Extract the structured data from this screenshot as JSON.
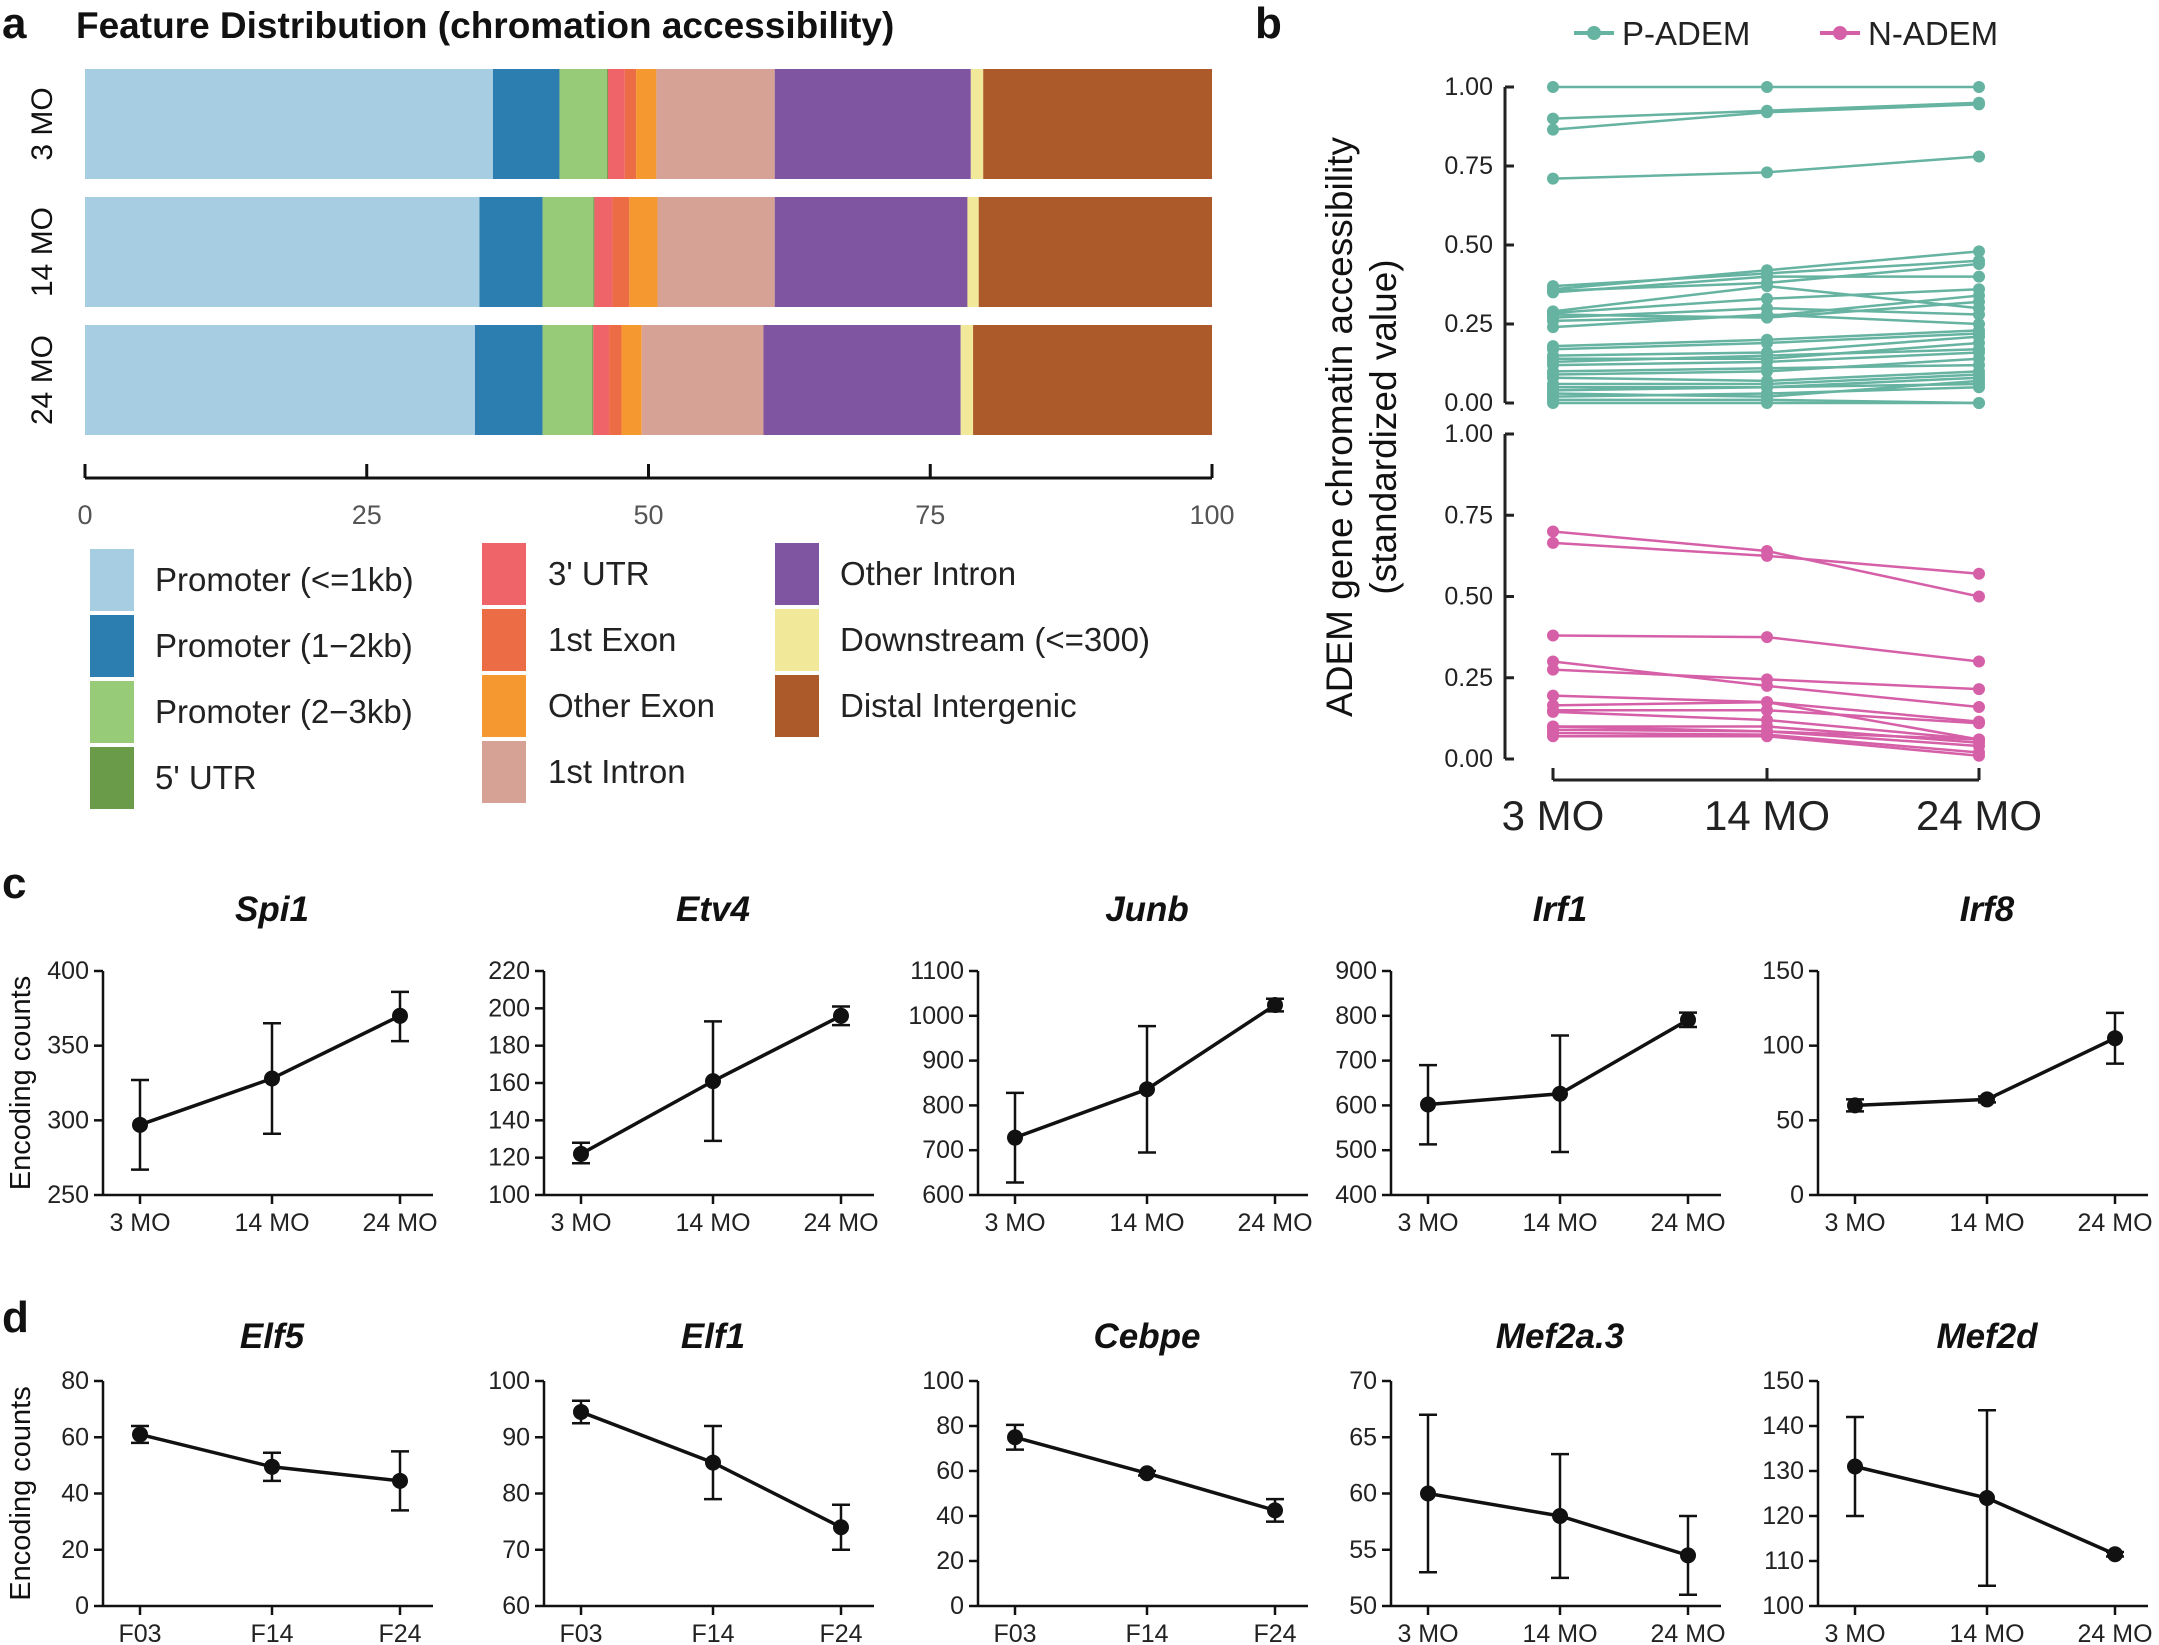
{
  "panels": {
    "a": "a",
    "b": "b",
    "c": "c",
    "d": "d"
  },
  "chart_data": [
    {
      "id": "a",
      "type": "bar",
      "orientation": "horizontal-stacked",
      "title": "Feature Distribution (chromation accessibility)",
      "categories": [
        "3 MO",
        "14 MO",
        "24 MO"
      ],
      "xlim": [
        0,
        100
      ],
      "xticks": [
        "0",
        "25",
        "50",
        "75",
        "100"
      ],
      "legend_placement": "bottom",
      "series": [
        {
          "name": "Promoter (<=1kb)",
          "color": "#a6cde1",
          "values": [
            36.2,
            35.0,
            34.6
          ]
        },
        {
          "name": "Promoter (1−2kb)",
          "color": "#2c7eb0",
          "values": [
            5.9,
            5.6,
            6.0
          ]
        },
        {
          "name": "Promoter (2−3kb)",
          "color": "#97cb78",
          "values": [
            4.2,
            4.5,
            4.4
          ]
        },
        {
          "name": "5' UTR",
          "color": "#6a9b48",
          "values": [
            0.1,
            0.1,
            0.1
          ]
        },
        {
          "name": "3' UTR",
          "color": "#ee6468",
          "values": [
            1.5,
            1.6,
            1.4
          ]
        },
        {
          "name": "1st Exon",
          "color": "#ec6c46",
          "values": [
            1.0,
            1.5,
            1.1
          ]
        },
        {
          "name": "Other Exon",
          "color": "#f5982f",
          "values": [
            1.8,
            2.5,
            1.8
          ]
        },
        {
          "name": "1st Intron",
          "color": "#d6a295",
          "values": [
            10.5,
            10.4,
            10.8
          ]
        },
        {
          "name": "Other Intron",
          "color": "#7f55a1",
          "values": [
            17.4,
            17.1,
            17.5
          ]
        },
        {
          "name": "Downstream (<=300)",
          "color": "#f1e899",
          "values": [
            1.1,
            1.0,
            1.1
          ]
        },
        {
          "name": "Distal Intergenic",
          "color": "#ac5a2a",
          "values": [
            20.3,
            20.7,
            21.2
          ]
        }
      ]
    },
    {
      "id": "b",
      "type": "line",
      "ylabel": [
        "ADEM gene chromatin accessibility",
        "(standardized value)"
      ],
      "x": [
        "3 MO",
        "14 MO",
        "24 MO"
      ],
      "ylim": [
        0,
        1
      ],
      "yticks": [
        "0.00",
        "0.25",
        "0.50",
        "0.75",
        "1.00"
      ],
      "legend_placement": "top",
      "series": [
        {
          "name": "P-ADEM",
          "color": "#66b3a1",
          "lines": [
            [
              1,
              1,
              1
            ],
            [
              0.9,
              0.925,
              0.95
            ],
            [
              0.865,
              0.92,
              0.945
            ],
            [
              0.71,
              0.73,
              0.78
            ],
            [
              0.36,
              0.42,
              0.48
            ],
            [
              0.37,
              0.41,
              0.45
            ],
            [
              0.355,
              0.38,
              0.44
            ],
            [
              0.35,
              0.4,
              0.4
            ],
            [
              0.29,
              0.37,
              0.3
            ],
            [
              0.285,
              0.33,
              0.36
            ],
            [
              0.28,
              0.27,
              0.32
            ],
            [
              0.27,
              0.3,
              0.28
            ],
            [
              0.26,
              0.275,
              0.34
            ],
            [
              0.24,
              0.28,
              0.25
            ],
            [
              0.18,
              0.2,
              0.23
            ],
            [
              0.17,
              0.19,
              0.22
            ],
            [
              0.15,
              0.16,
              0.21
            ],
            [
              0.14,
              0.14,
              0.19
            ],
            [
              0.13,
              0.15,
              0.17
            ],
            [
              0.12,
              0.13,
              0.16
            ],
            [
              0.1,
              0.11,
              0.12
            ],
            [
              0.09,
              0.1,
              0.14
            ],
            [
              0.08,
              0.07,
              0.1
            ],
            [
              0.06,
              0.06,
              0.09
            ],
            [
              0.05,
              0.05,
              0.08
            ],
            [
              0.04,
              0.05,
              0.06
            ],
            [
              0.03,
              0.02,
              0.07
            ],
            [
              0.02,
              0.03,
              0.05
            ],
            [
              0.01,
              0.01,
              0.0
            ],
            [
              0.0,
              0.0,
              0.0
            ]
          ]
        },
        {
          "name": "N-ADEM",
          "color": "#d660a8",
          "lines": [
            [
              0.7,
              0.64,
              0.5
            ],
            [
              0.665,
              0.625,
              0.57
            ],
            [
              0.38,
              0.375,
              0.3
            ],
            [
              0.3,
              0.225,
              0.16
            ],
            [
              0.275,
              0.245,
              0.215
            ],
            [
              0.195,
              0.175,
              0.115
            ],
            [
              0.165,
              0.175,
              0.06
            ],
            [
              0.15,
              0.15,
              0.11
            ],
            [
              0.145,
              0.12,
              0.06
            ],
            [
              0.1,
              0.1,
              0.05
            ],
            [
              0.09,
              0.085,
              0.04
            ],
            [
              0.08,
              0.075,
              0.02
            ],
            [
              0.07,
              0.07,
              0.01
            ],
            [
              0.1,
              0.085,
              0.06
            ]
          ]
        }
      ]
    },
    {
      "id": "c1",
      "type": "line",
      "title": "Spi1",
      "ylabel": "Encoding counts",
      "x": [
        "3 MO",
        "14 MO",
        "24 MO"
      ],
      "ylim": [
        250,
        400
      ],
      "yticks": [
        "250",
        "300",
        "350",
        "400"
      ],
      "values": [
        297,
        328,
        370
      ],
      "err_low": [
        267,
        291,
        353
      ],
      "err_high": [
        327,
        365,
        386
      ]
    },
    {
      "id": "c2",
      "type": "line",
      "title": "Etv4",
      "x": [
        "3 MO",
        "14 MO",
        "24 MO"
      ],
      "ylim": [
        100,
        220
      ],
      "yticks": [
        "100",
        "120",
        "140",
        "160",
        "180",
        "200",
        "220"
      ],
      "values": [
        122,
        161,
        196
      ],
      "err_low": [
        117,
        129,
        191
      ],
      "err_high": [
        128,
        193,
        201
      ]
    },
    {
      "id": "c3",
      "type": "line",
      "title": "Junb",
      "x": [
        "3 MO",
        "14 MO",
        "24 MO"
      ],
      "ylim": [
        600,
        1100
      ],
      "yticks": [
        "600",
        "700",
        "800",
        "900",
        "1000",
        "1100"
      ],
      "values": [
        728,
        836,
        1024
      ],
      "err_low": [
        628,
        695,
        1010
      ],
      "err_high": [
        828,
        977,
        1038
      ]
    },
    {
      "id": "c4",
      "type": "line",
      "title": "Irf1",
      "x": [
        "3 MO",
        "14 MO",
        "24 MO"
      ],
      "ylim": [
        400,
        900
      ],
      "yticks": [
        "400",
        "500",
        "600",
        "700",
        "800",
        "900"
      ],
      "values": [
        602,
        626,
        791
      ],
      "err_low": [
        513,
        496,
        775
      ],
      "err_high": [
        690,
        756,
        807
      ]
    },
    {
      "id": "c5",
      "type": "line",
      "title": "Irf8",
      "x": [
        "3 MO",
        "14 MO",
        "24 MO"
      ],
      "ylim": [
        0,
        150
      ],
      "yticks": [
        "0",
        "50",
        "100",
        "150"
      ],
      "values": [
        60,
        64,
        105
      ],
      "err_low": [
        56,
        62,
        88
      ],
      "err_high": [
        64,
        66,
        122
      ]
    },
    {
      "id": "d1",
      "type": "line",
      "title": "Elf5",
      "ylabel": "Encoding counts",
      "x": [
        "F03",
        "F14",
        "F24"
      ],
      "ylim": [
        0,
        80
      ],
      "yticks": [
        "0",
        "20",
        "40",
        "60",
        "80"
      ],
      "values": [
        61,
        49.5,
        44.5
      ],
      "err_low": [
        58,
        44.5,
        34
      ],
      "err_high": [
        64,
        54.5,
        55
      ]
    },
    {
      "id": "d2",
      "type": "line",
      "title": "Elf1",
      "x": [
        "F03",
        "F14",
        "F24"
      ],
      "ylim": [
        60,
        100
      ],
      "yticks": [
        "60",
        "70",
        "80",
        "90",
        "100"
      ],
      "values": [
        94.5,
        85.5,
        74
      ],
      "err_low": [
        92.5,
        79,
        70
      ],
      "err_high": [
        96.5,
        92,
        78
      ]
    },
    {
      "id": "d3",
      "type": "line",
      "title": "Cebpe",
      "x": [
        "F03",
        "F14",
        "F24"
      ],
      "ylim": [
        0,
        100
      ],
      "yticks": [
        "0",
        "20",
        "40",
        "60",
        "80",
        "100"
      ],
      "values": [
        75,
        59,
        42.5
      ],
      "err_low": [
        69.5,
        58,
        37.5
      ],
      "err_high": [
        80.5,
        60,
        47.5
      ]
    },
    {
      "id": "d4",
      "type": "line",
      "title": "Mef2a.3",
      "x": [
        "3 MO",
        "14 MO",
        "24 MO"
      ],
      "ylim": [
        50,
        70
      ],
      "yticks": [
        "50",
        "55",
        "60",
        "65",
        "70"
      ],
      "values": [
        60,
        58,
        54.5
      ],
      "err_low": [
        53,
        52.5,
        51
      ],
      "err_high": [
        67,
        63.5,
        58
      ]
    },
    {
      "id": "d5",
      "type": "line",
      "title": "Mef2d",
      "x": [
        "3 MO",
        "14 MO",
        "24 MO"
      ],
      "ylim": [
        100,
        150
      ],
      "yticks": [
        "100",
        "110",
        "120",
        "130",
        "140",
        "150"
      ],
      "values": [
        131,
        124,
        111.5
      ],
      "err_low": [
        120,
        104.5,
        111
      ],
      "err_high": [
        142,
        143.5,
        112
      ]
    }
  ]
}
